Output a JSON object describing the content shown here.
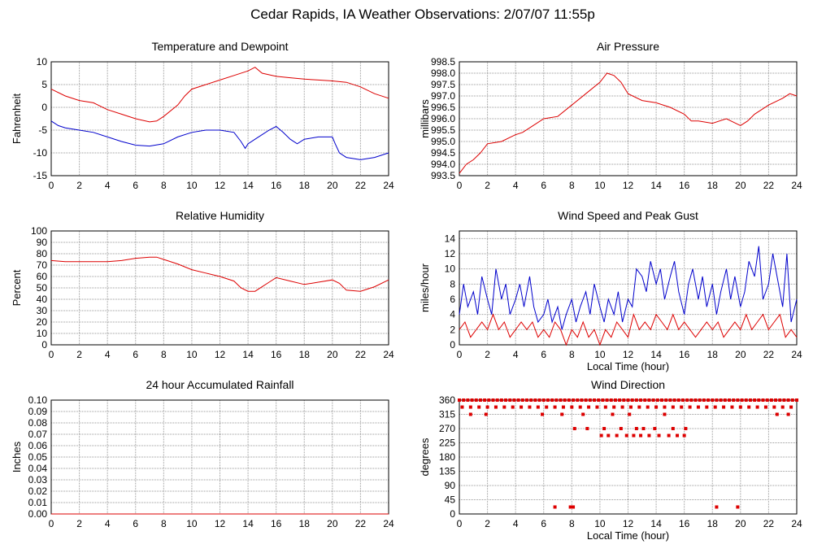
{
  "title": "Cedar Rapids, IA Weather Observations: 2/07/07 11:55p",
  "colors": {
    "red": "#dd0000",
    "blue": "#0000cc",
    "grid": "#999999",
    "frame": "#000000"
  },
  "chart_data": [
    {
      "type": "line",
      "title": "Temperature and Dewpoint",
      "xlabel": "",
      "ylabel": "Fahrenheit",
      "xlim": [
        0,
        24
      ],
      "ylim": [
        -15,
        10
      ],
      "xticks": [
        0,
        2,
        4,
        6,
        8,
        10,
        12,
        14,
        16,
        18,
        20,
        22,
        24
      ],
      "yticks": [
        -15,
        -10,
        -5,
        0,
        5,
        10
      ],
      "grid": true,
      "series": [
        {
          "color": "#dd0000",
          "x": [
            0,
            1,
            2,
            3,
            4,
            5,
            6,
            7,
            7.5,
            8,
            9,
            9.5,
            10,
            11,
            12,
            13,
            14,
            14.5,
            15,
            16,
            17,
            18,
            19,
            20,
            21,
            22,
            23,
            24
          ],
          "y": [
            4,
            2.5,
            1.5,
            1,
            -0.5,
            -1.5,
            -2.5,
            -3.2,
            -3,
            -2,
            0.5,
            2.5,
            4,
            5,
            6,
            7,
            8,
            8.8,
            7.5,
            6.8,
            6.5,
            6.2,
            6,
            5.8,
            5.5,
            4.5,
            3,
            2
          ]
        },
        {
          "color": "#0000cc",
          "x": [
            0,
            0.5,
            1,
            2,
            3,
            4,
            5,
            6,
            7,
            8,
            9,
            10,
            11,
            12,
            13,
            13.5,
            13.8,
            14,
            14.5,
            15,
            15.5,
            16,
            16.5,
            17,
            17.5,
            18,
            19,
            20,
            20.2,
            20.5,
            21,
            22,
            23,
            24
          ],
          "y": [
            -3,
            -4,
            -4.5,
            -5,
            -5.5,
            -6.5,
            -7.5,
            -8.3,
            -8.5,
            -8,
            -6.5,
            -5.5,
            -5,
            -5,
            -5.5,
            -7.5,
            -9,
            -8,
            -7,
            -6,
            -5,
            -4.2,
            -5.5,
            -7,
            -8,
            -7,
            -6.5,
            -6.5,
            -8,
            -10,
            -11,
            -11.5,
            -11,
            -10
          ]
        }
      ]
    },
    {
      "type": "line",
      "title": "Air Pressure",
      "xlabel": "",
      "ylabel": "millibars",
      "xlim": [
        0,
        24
      ],
      "ylim": [
        993.5,
        998.5
      ],
      "xticks": [
        0,
        2,
        4,
        6,
        8,
        10,
        12,
        14,
        16,
        18,
        20,
        22,
        24
      ],
      "yticks": [
        "993.5",
        "994.0",
        "994.5",
        "995.0",
        "995.5",
        "996.0",
        "996.5",
        "997.0",
        "997.5",
        "998.0",
        "998.5"
      ],
      "grid": true,
      "series": [
        {
          "color": "#dd0000",
          "x": [
            0,
            0.5,
            1,
            1.5,
            2,
            3,
            4,
            4.5,
            5,
            6,
            7,
            8,
            9,
            10,
            10.5,
            11,
            11.5,
            12,
            13,
            14,
            15,
            16,
            16.5,
            17,
            18,
            19,
            20,
            20.5,
            21,
            22,
            23,
            23.5,
            24
          ],
          "y": [
            993.6,
            994.0,
            994.2,
            994.5,
            994.9,
            995.0,
            995.3,
            995.4,
            995.6,
            996.0,
            996.1,
            996.6,
            997.1,
            997.6,
            998.0,
            997.9,
            997.6,
            997.1,
            996.8,
            996.7,
            996.5,
            996.2,
            995.9,
            995.9,
            995.8,
            996.0,
            995.7,
            995.9,
            996.2,
            996.6,
            996.9,
            997.1,
            997.0
          ]
        }
      ]
    },
    {
      "type": "line",
      "title": "Relative Humidity",
      "xlabel": "",
      "ylabel": "Percent",
      "xlim": [
        0,
        24
      ],
      "ylim": [
        0,
        100
      ],
      "xticks": [
        0,
        2,
        4,
        6,
        8,
        10,
        12,
        14,
        16,
        18,
        20,
        22,
        24
      ],
      "yticks": [
        0,
        10,
        20,
        30,
        40,
        50,
        60,
        70,
        80,
        90,
        100
      ],
      "grid": true,
      "series": [
        {
          "color": "#dd0000",
          "x": [
            0,
            1,
            2,
            3,
            4,
            5,
            6,
            7,
            7.5,
            8,
            9,
            10,
            11,
            12,
            13,
            13.5,
            14,
            14.5,
            15,
            15.5,
            16,
            17,
            18,
            19,
            20,
            20.5,
            21,
            22,
            23,
            24
          ],
          "y": [
            74,
            73,
            73,
            73,
            73,
            74,
            76,
            77,
            77,
            75,
            71,
            66,
            63,
            60,
            56,
            50,
            47,
            47,
            51,
            55,
            59,
            56,
            53,
            55,
            57,
            54,
            48,
            47,
            51,
            57
          ]
        }
      ]
    },
    {
      "type": "line",
      "title": "Wind Speed and Peak Gust",
      "xlabel": "Local Time (hour)",
      "ylabel": "miles/hour",
      "xlim": [
        0,
        24
      ],
      "ylim": [
        0,
        15
      ],
      "xticks": [
        0,
        2,
        4,
        6,
        8,
        10,
        12,
        14,
        16,
        18,
        20,
        22,
        24
      ],
      "yticks": [
        0,
        2,
        4,
        6,
        8,
        10,
        12,
        14
      ],
      "grid": true,
      "series": [
        {
          "color": "#0000cc",
          "x": [
            0,
            0.3,
            0.6,
            1,
            1.3,
            1.6,
            2,
            2.3,
            2.6,
            3,
            3.3,
            3.6,
            4,
            4.3,
            4.6,
            5,
            5.3,
            5.6,
            6,
            6.3,
            6.6,
            7,
            7.3,
            7.6,
            8,
            8.3,
            8.6,
            9,
            9.3,
            9.6,
            10,
            10.3,
            10.6,
            11,
            11.3,
            11.6,
            12,
            12.3,
            12.6,
            13,
            13.3,
            13.6,
            14,
            14.3,
            14.6,
            15,
            15.3,
            15.6,
            16,
            16.3,
            16.6,
            17,
            17.3,
            17.6,
            18,
            18.3,
            18.6,
            19,
            19.3,
            19.6,
            20,
            20.3,
            20.6,
            21,
            21.3,
            21.6,
            22,
            22.3,
            22.6,
            23,
            23.3,
            23.6,
            24
          ],
          "y": [
            4,
            8,
            5,
            7,
            4,
            9,
            6,
            4,
            10,
            6,
            8,
            4,
            6,
            8,
            5,
            9,
            5,
            3,
            4,
            6,
            3,
            5,
            2,
            4,
            6,
            3,
            5,
            7,
            4,
            8,
            5,
            3,
            6,
            4,
            7,
            3,
            6,
            5,
            10,
            9,
            7,
            11,
            8,
            10,
            6,
            9,
            11,
            7,
            4,
            8,
            10,
            6,
            9,
            5,
            8,
            4,
            7,
            10,
            6,
            9,
            5,
            7,
            11,
            9,
            13,
            6,
            8,
            12,
            9,
            5,
            12,
            3,
            6
          ]
        },
        {
          "color": "#dd0000",
          "x": [
            0,
            0.4,
            0.8,
            1.2,
            1.6,
            2,
            2.4,
            2.8,
            3.2,
            3.6,
            4,
            4.4,
            4.8,
            5.2,
            5.6,
            6,
            6.4,
            6.8,
            7.2,
            7.6,
            8,
            8.4,
            8.8,
            9.2,
            9.6,
            10,
            10.4,
            10.8,
            11.2,
            11.6,
            12,
            12.4,
            12.8,
            13.2,
            13.6,
            14,
            14.4,
            14.8,
            15.2,
            15.6,
            16,
            16.4,
            16.8,
            17.2,
            17.6,
            18,
            18.4,
            18.8,
            19.2,
            19.6,
            20,
            20.4,
            20.8,
            21.2,
            21.6,
            22,
            22.4,
            22.8,
            23.2,
            23.6,
            24
          ],
          "y": [
            2,
            3,
            1,
            2,
            3,
            2,
            4,
            2,
            3,
            1,
            2,
            3,
            2,
            3,
            1,
            2,
            1,
            3,
            2,
            0,
            2,
            1,
            3,
            1,
            2,
            0,
            2,
            1,
            3,
            2,
            1,
            4,
            2,
            3,
            2,
            4,
            3,
            2,
            4,
            2,
            3,
            2,
            1,
            2,
            3,
            2,
            3,
            1,
            2,
            3,
            2,
            4,
            2,
            3,
            4,
            2,
            3,
            4,
            1,
            2,
            1
          ]
        }
      ]
    },
    {
      "type": "line",
      "title": "24 hour Accumulated Rainfall",
      "xlabel": "",
      "ylabel": "Inches",
      "xlim": [
        0,
        24
      ],
      "ylim": [
        0,
        0.1
      ],
      "xticks": [
        0,
        2,
        4,
        6,
        8,
        10,
        12,
        14,
        16,
        18,
        20,
        22,
        24
      ],
      "yticks": [
        "0.00",
        "0.01",
        "0.02",
        "0.03",
        "0.04",
        "0.05",
        "0.06",
        "0.07",
        "0.08",
        "0.09",
        "0.10"
      ],
      "grid": true,
      "series": [
        {
          "color": "#dd0000",
          "x": [
            0,
            24
          ],
          "y": [
            0,
            0
          ]
        }
      ]
    },
    {
      "type": "scatter",
      "title": "Wind Direction",
      "xlabel": "Local Time (hour)",
      "ylabel": "degrees",
      "xlim": [
        0,
        24
      ],
      "ylim": [
        0,
        360
      ],
      "xticks": [
        0,
        2,
        4,
        6,
        8,
        10,
        12,
        14,
        16,
        18,
        20,
        22,
        24
      ],
      "yticks": [
        0,
        45,
        90,
        135,
        180,
        225,
        270,
        315,
        360
      ],
      "grid": true,
      "series": [
        {
          "color": "#dd0000",
          "x": [
            0,
            0.3,
            0.6,
            0.9,
            1.2,
            1.5,
            1.8,
            2.1,
            2.4,
            2.7,
            3,
            3.3,
            3.6,
            3.9,
            4.2,
            4.5,
            4.8,
            5.1,
            5.4,
            5.7,
            6,
            6.3,
            6.6,
            6.9,
            7.2,
            7.5,
            7.8,
            8.1,
            8.4,
            8.7,
            9,
            9.3,
            9.6,
            9.9,
            10.2,
            10.5,
            10.8,
            11.1,
            11.4,
            11.7,
            12,
            12.3,
            12.6,
            12.9,
            13.2,
            13.5,
            13.8,
            14.1,
            14.4,
            14.7,
            15,
            15.3,
            15.6,
            15.9,
            16.2,
            16.5,
            16.8,
            17.1,
            17.4,
            17.7,
            18,
            18.3,
            18.6,
            18.9,
            19.2,
            19.5,
            19.8,
            20.1,
            20.4,
            20.7,
            21,
            21.3,
            21.6,
            21.9,
            22.2,
            22.5,
            22.8,
            23.1,
            23.4,
            23.7,
            24,
            0.2,
            0.8,
            1.4,
            2,
            2.6,
            3.2,
            3.8,
            4.4,
            5,
            5.6,
            6.2,
            6.8,
            7.4,
            8,
            8.6,
            9.2,
            9.8,
            10.4,
            11,
            11.6,
            12.2,
            12.8,
            13.4,
            14,
            14.6,
            15.2,
            15.8,
            16.4,
            17,
            17.6,
            18.2,
            18.8,
            19.4,
            20,
            20.6,
            21.2,
            21.8,
            22.4,
            23,
            23.6,
            10.1,
            10.6,
            11.2,
            11.9,
            12.4,
            12.9,
            13.5,
            14.2,
            14.9,
            15.5,
            16,
            8.2,
            9.1,
            10.3,
            11.5,
            12.6,
            13.1,
            13.9,
            15.2,
            16.1,
            0.8,
            1.9,
            5.9,
            7.3,
            8.8,
            10.9,
            12.1,
            14.6,
            22.6,
            23.4,
            6.8,
            7.9,
            8.1,
            18.3,
            19.8
          ],
          "y": [
            360,
            360,
            360,
            360,
            360,
            360,
            360,
            360,
            360,
            360,
            360,
            360,
            360,
            360,
            360,
            360,
            360,
            360,
            360,
            360,
            360,
            360,
            360,
            360,
            360,
            360,
            360,
            360,
            360,
            360,
            360,
            360,
            360,
            360,
            360,
            360,
            360,
            360,
            360,
            360,
            360,
            360,
            360,
            360,
            360,
            360,
            360,
            360,
            360,
            360,
            360,
            360,
            360,
            360,
            360,
            360,
            360,
            360,
            360,
            360,
            360,
            360,
            360,
            360,
            360,
            360,
            360,
            360,
            360,
            360,
            360,
            360,
            360,
            360,
            360,
            360,
            360,
            360,
            360,
            360,
            360,
            338,
            338,
            338,
            338,
            338,
            338,
            338,
            338,
            338,
            338,
            338,
            338,
            338,
            338,
            338,
            338,
            338,
            338,
            338,
            338,
            338,
            338,
            338,
            338,
            338,
            338,
            338,
            338,
            338,
            338,
            338,
            338,
            338,
            338,
            338,
            338,
            338,
            338,
            338,
            338,
            248,
            248,
            248,
            248,
            248,
            248,
            248,
            248,
            248,
            248,
            248,
            270,
            270,
            270,
            270,
            270,
            270,
            270,
            270,
            270,
            315,
            315,
            315,
            315,
            315,
            315,
            315,
            315,
            315,
            315,
            22,
            22,
            22,
            22,
            22
          ]
        }
      ]
    }
  ]
}
